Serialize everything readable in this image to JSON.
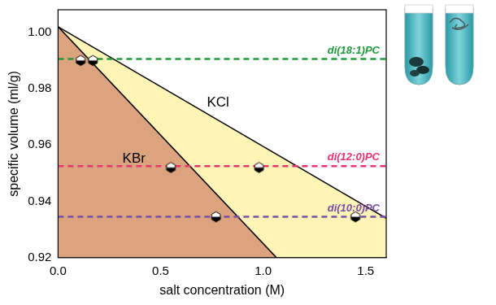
{
  "chart_data": {
    "type": "line",
    "xlabel": "salt concentration (M)",
    "ylabel": "specific volume (ml/g)",
    "xlim": [
      0,
      1.6
    ],
    "xticks": [
      {
        "value": 0,
        "label": "0.0"
      },
      {
        "value": 0.5,
        "label": "0.5"
      },
      {
        "value": 1,
        "label": "1.0"
      },
      {
        "value": 1.5,
        "label": "1.5"
      }
    ],
    "ylim": [
      0.92,
      1.008
    ],
    "yticks": [
      0.92,
      0.94,
      0.96,
      0.98,
      {
        "value": 1,
        "label": "1.00"
      }
    ],
    "grid": false,
    "series": [
      {
        "type": "area",
        "color": "#fdf4b6",
        "x": [
          0,
          1.6
        ],
        "values": [
          1.002,
          0.934
        ]
      },
      {
        "type": "area",
        "color": "#dca37f",
        "x": [
          0,
          1.065
        ],
        "values": [
          1.002,
          0.92
        ]
      },
      {
        "name": "di(18:1)PC",
        "type": "line",
        "line_style": "dashed",
        "color": "#1f9a3c",
        "x": [
          0,
          1.6
        ],
        "values": [
          0.9905,
          0.9905
        ]
      },
      {
        "name": "di(12:0)PC",
        "type": "line",
        "line_style": "dashed",
        "color": "#e8346c",
        "x": [
          0,
          1.6
        ],
        "values": [
          0.9525,
          0.9525
        ]
      },
      {
        "name": "di(10:0)PC",
        "type": "line",
        "line_style": "dashed",
        "color": "#7a4ea8",
        "x": [
          0,
          1.6
        ],
        "values": [
          0.9345,
          0.9345
        ]
      },
      {
        "type": "scatter",
        "marker": "hexagon",
        "color": "#000000",
        "x": [
          0.11,
          0.17,
          0.55,
          0.98,
          0.77,
          1.45
        ],
        "values": [
          0.99,
          0.99,
          0.952,
          0.952,
          0.9345,
          0.9345
        ]
      }
    ],
    "annotations": [
      {
        "text": "KBr",
        "x": 0.37,
        "y": 0.955
      },
      {
        "text": "KCl",
        "x": 0.78,
        "y": 0.975
      }
    ]
  }
}
